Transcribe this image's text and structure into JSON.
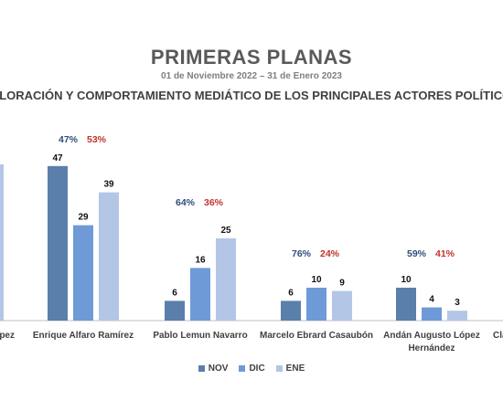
{
  "title": "PRIMERAS PLANAS",
  "subtitle": "01 de Noviembre 2022 – 31 de Enero 2023",
  "heading": "VALORACIÓN Y COMPORTAMIENTO MEDIÁTICO DE LOS PRINCIPALES ACTORES POLÍTICOS",
  "colors": {
    "NOV": "#5b7fab",
    "DIC": "#6f9ad8",
    "ENE": "#b3c6e5",
    "positive": "#2e4e79",
    "negative": "#c0332f",
    "value": "#111111",
    "axis": "#bfbfbf"
  },
  "chart_data": {
    "type": "bar",
    "categories": [
      "...pez",
      "Enrique Alfaro Ramírez",
      "Pablo Lemun Navarro",
      "Marcelo Ebrard Casaubón",
      "Andán Augusto López Hernández",
      "Cla..."
    ],
    "series": [
      {
        "name": "NOV",
        "values": [
          null,
          47,
          6,
          6,
          10,
          null
        ]
      },
      {
        "name": "DIC",
        "values": [
          null,
          29,
          16,
          10,
          4,
          null
        ]
      },
      {
        "name": "ENE",
        "values": [
          null,
          39,
          25,
          9,
          3,
          null
        ]
      }
    ],
    "percent_positive": [
      "",
      "47%",
      "64%",
      "76%",
      "59%",
      ""
    ],
    "percent_negative": [
      "",
      "53%",
      "36%",
      "24%",
      "41%",
      ""
    ],
    "legend": [
      "NOV",
      "DIC",
      "ENE"
    ],
    "legend_position": "bottom",
    "grid": false
  }
}
